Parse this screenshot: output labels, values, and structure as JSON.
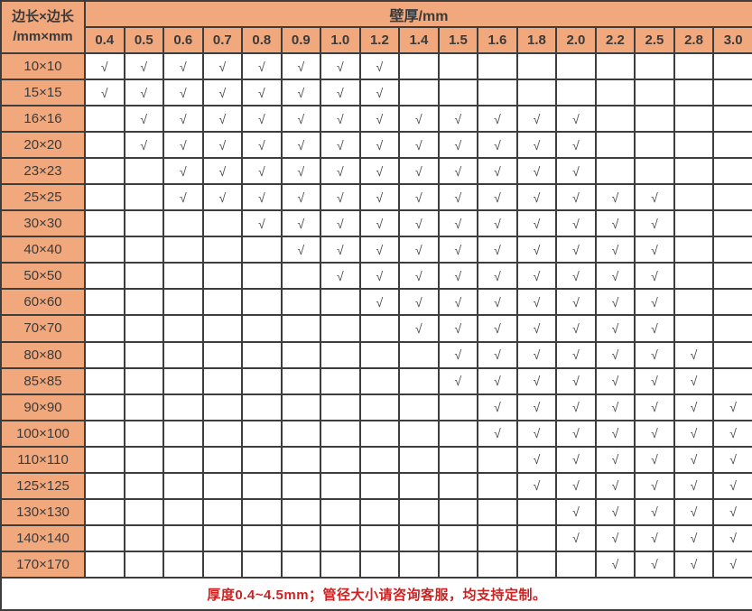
{
  "table": {
    "corner_line1": "边长×边长",
    "corner_line2": "/mm×mm",
    "span_header": "壁厚/mm",
    "check_mark": "√",
    "thickness_columns": [
      "0.4",
      "0.5",
      "0.6",
      "0.7",
      "0.8",
      "0.9",
      "1.0",
      "1.2",
      "1.4",
      "1.5",
      "1.6",
      "1.8",
      "2.0",
      "2.2",
      "2.5",
      "2.8",
      "3.0"
    ],
    "rows": [
      {
        "label": "10×10",
        "checked": [
          "0.4",
          "0.5",
          "0.6",
          "0.7",
          "0.8",
          "0.9",
          "1.0",
          "1.2"
        ]
      },
      {
        "label": "15×15",
        "checked": [
          "0.4",
          "0.5",
          "0.6",
          "0.7",
          "0.8",
          "0.9",
          "1.0",
          "1.2"
        ]
      },
      {
        "label": "16×16",
        "checked": [
          "0.5",
          "0.6",
          "0.7",
          "0.8",
          "0.9",
          "1.0",
          "1.2",
          "1.4",
          "1.5",
          "1.6",
          "1.8",
          "2.0"
        ]
      },
      {
        "label": "20×20",
        "checked": [
          "0.5",
          "0.6",
          "0.7",
          "0.8",
          "0.9",
          "1.0",
          "1.2",
          "1.4",
          "1.5",
          "1.6",
          "1.8",
          "2.0"
        ]
      },
      {
        "label": "23×23",
        "checked": [
          "0.6",
          "0.7",
          "0.8",
          "0.9",
          "1.0",
          "1.2",
          "1.4",
          "1.5",
          "1.6",
          "1.8",
          "2.0"
        ]
      },
      {
        "label": "25×25",
        "checked": [
          "0.6",
          "0.7",
          "0.8",
          "0.9",
          "1.0",
          "1.2",
          "1.4",
          "1.5",
          "1.6",
          "1.8",
          "2.0",
          "2.2",
          "2.5"
        ]
      },
      {
        "label": "30×30",
        "checked": [
          "0.8",
          "0.9",
          "1.0",
          "1.2",
          "1.4",
          "1.5",
          "1.6",
          "1.8",
          "2.0",
          "2.2",
          "2.5"
        ]
      },
      {
        "label": "40×40",
        "checked": [
          "0.9",
          "1.0",
          "1.2",
          "1.4",
          "1.5",
          "1.6",
          "1.8",
          "2.0",
          "2.2",
          "2.5"
        ]
      },
      {
        "label": "50×50",
        "checked": [
          "1.0",
          "1.2",
          "1.4",
          "1.5",
          "1.6",
          "1.8",
          "2.0",
          "2.2",
          "2.5"
        ]
      },
      {
        "label": "60×60",
        "checked": [
          "1.2",
          "1.4",
          "1.5",
          "1.6",
          "1.8",
          "2.0",
          "2.2",
          "2.5"
        ]
      },
      {
        "label": "70×70",
        "checked": [
          "1.4",
          "1.5",
          "1.6",
          "1.8",
          "2.0",
          "2.2",
          "2.5"
        ]
      },
      {
        "label": "80×80",
        "checked": [
          "1.5",
          "1.6",
          "1.8",
          "2.0",
          "2.2",
          "2.5",
          "2.8"
        ]
      },
      {
        "label": "85×85",
        "checked": [
          "1.5",
          "1.6",
          "1.8",
          "2.0",
          "2.2",
          "2.5",
          "2.8"
        ]
      },
      {
        "label": "90×90",
        "checked": [
          "1.6",
          "1.8",
          "2.0",
          "2.2",
          "2.5",
          "2.8",
          "3.0"
        ]
      },
      {
        "label": "100×100",
        "checked": [
          "1.6",
          "1.8",
          "2.0",
          "2.2",
          "2.5",
          "2.8",
          "3.0"
        ]
      },
      {
        "label": "110×110",
        "checked": [
          "1.8",
          "2.0",
          "2.2",
          "2.5",
          "2.8",
          "3.0"
        ]
      },
      {
        "label": "125×125",
        "checked": [
          "1.8",
          "2.0",
          "2.2",
          "2.5",
          "2.8",
          "3.0"
        ]
      },
      {
        "label": "130×130",
        "checked": [
          "2.0",
          "2.2",
          "2.5",
          "2.8",
          "3.0"
        ]
      },
      {
        "label": "140×140",
        "checked": [
          "2.0",
          "2.2",
          "2.5",
          "2.8",
          "3.0"
        ]
      },
      {
        "label": "170×170",
        "checked": [
          "2.2",
          "2.5",
          "2.8",
          "3.0"
        ]
      }
    ],
    "footer_note": "厚度0.4~4.5mm；管径大小请咨询客服，均支持定制。"
  },
  "colors": {
    "header_bg": "#F1A87D",
    "border": "#3D3D3D",
    "check": "#4A4A4A",
    "footer_text": "#CE2121"
  }
}
